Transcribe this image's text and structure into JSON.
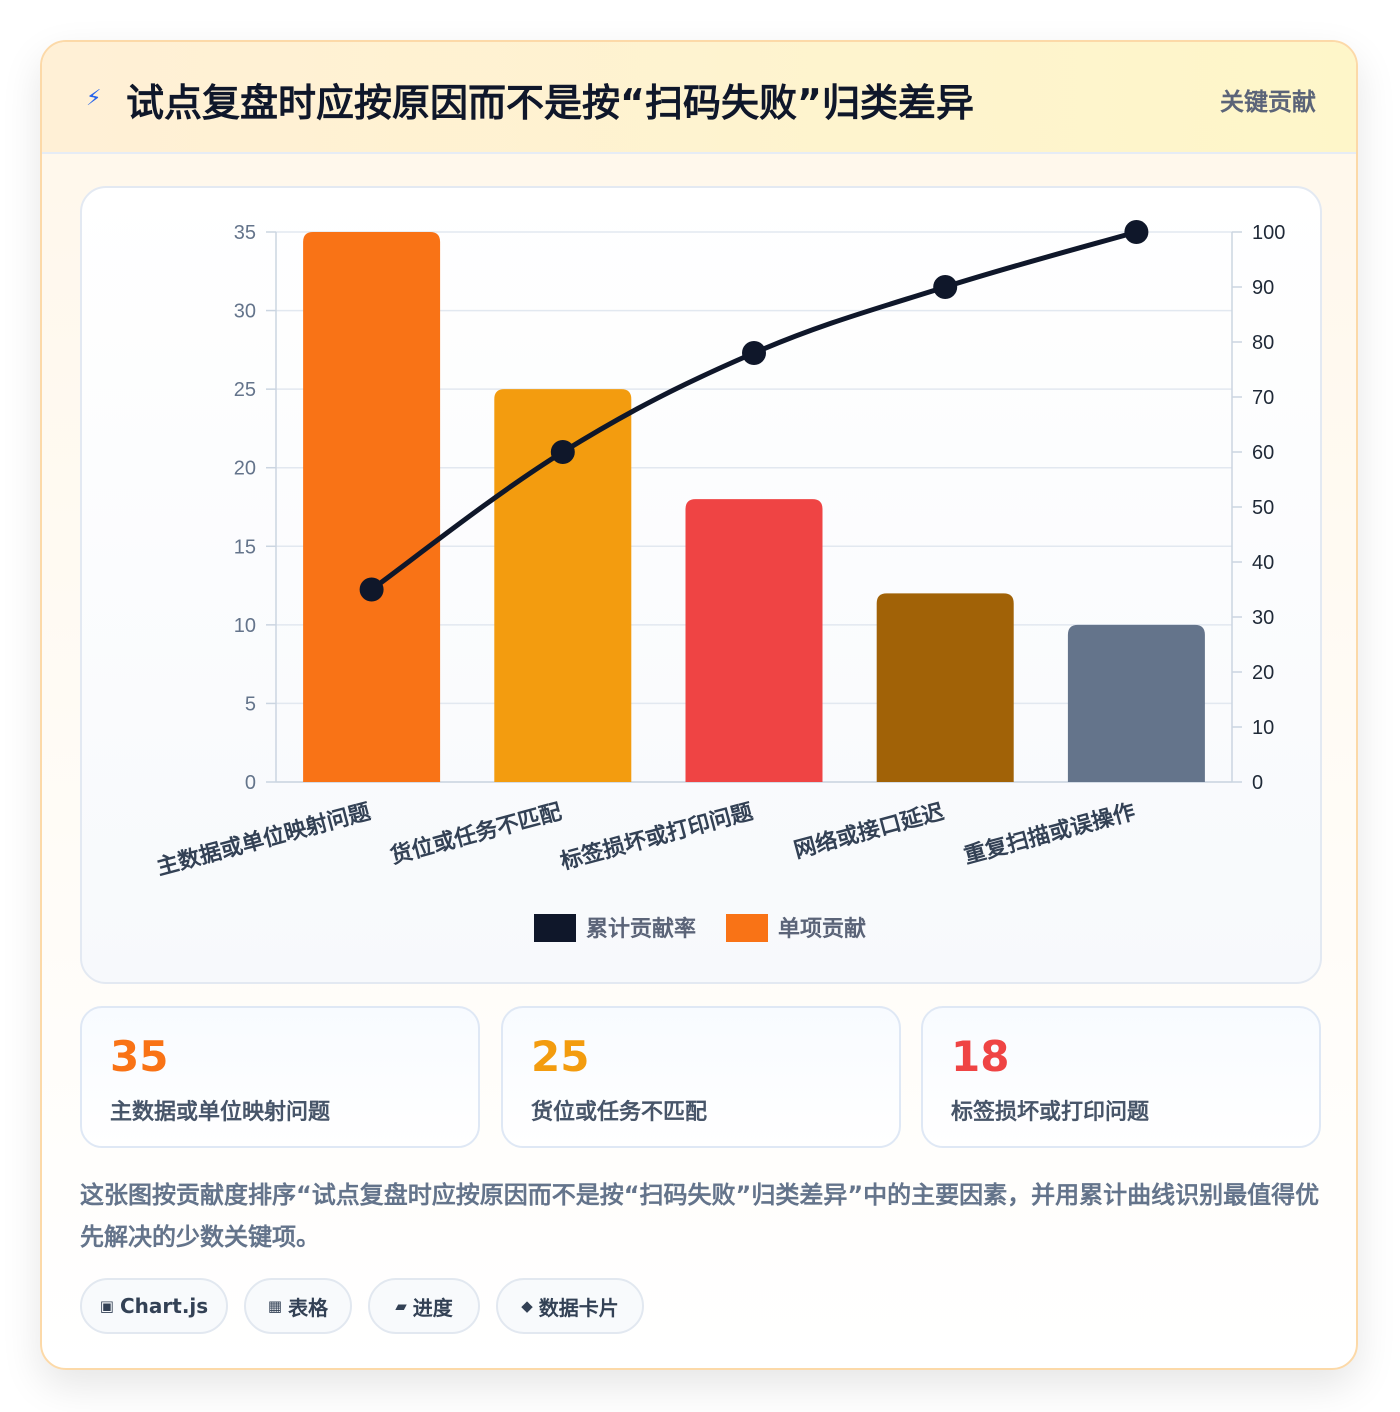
{
  "header": {
    "icon": "lightning-icon",
    "icon_glyph": "⚡",
    "title": "试点复盘时应按原因而不是按“扫码失败”归类差异",
    "tag": "关键贡献"
  },
  "chart_data": {
    "type": "bar",
    "categories": [
      "主数据或单位映射问题",
      "货位或任务不匹配",
      "标签损坏或打印问题",
      "网络或接口延迟",
      "重复扫描或误操作"
    ],
    "series": [
      {
        "name": "单项贡献",
        "type": "bar",
        "axis": "left",
        "values": [
          35,
          25,
          18,
          12,
          10
        ],
        "colors": [
          "#f97316",
          "#f39c0f",
          "#ef4444",
          "#a16207",
          "#64748b"
        ]
      },
      {
        "name": "累计贡献率",
        "type": "line",
        "axis": "right",
        "values": [
          35,
          60,
          78,
          90,
          100
        ],
        "color": "#0f172a"
      }
    ],
    "y_left": {
      "ticks": [
        "0",
        "5",
        "10",
        "15",
        "20",
        "25",
        "30",
        "35"
      ],
      "min": 0,
      "max": 35
    },
    "y_right": {
      "ticks": [
        "0",
        "10",
        "20",
        "30",
        "40",
        "50",
        "60",
        "70",
        "80",
        "90",
        "100"
      ],
      "min": 0,
      "max": 100
    },
    "legend": [
      {
        "label": "累计贡献率",
        "color": "#0f172a"
      },
      {
        "label": "单项贡献",
        "color": "#f97316"
      }
    ],
    "legend_position": "bottom",
    "grid": true
  },
  "stats": [
    {
      "value": "35",
      "label": "主数据或单位映射问题",
      "color": "#f97316"
    },
    {
      "value": "25",
      "label": "货位或任务不匹配",
      "color": "#f39c0f"
    },
    {
      "value": "18",
      "label": "标签损坏或打印问题",
      "color": "#ef4444"
    }
  ],
  "description": "这张图按贡献度排序“试点复盘时应按原因而不是按“扫码失败”归类差异”中的主要因素，并用累计曲线识别最值得优先解决的少数关键项。",
  "chips": [
    {
      "icon": "chart-icon",
      "glyph": "▣",
      "label": "Chart.js"
    },
    {
      "icon": "table-icon",
      "glyph": "▦",
      "label": "表格"
    },
    {
      "icon": "progress-icon",
      "glyph": "▰",
      "label": "进度"
    },
    {
      "icon": "data-card-icon",
      "glyph": "◆",
      "label": "数据卡片"
    }
  ]
}
